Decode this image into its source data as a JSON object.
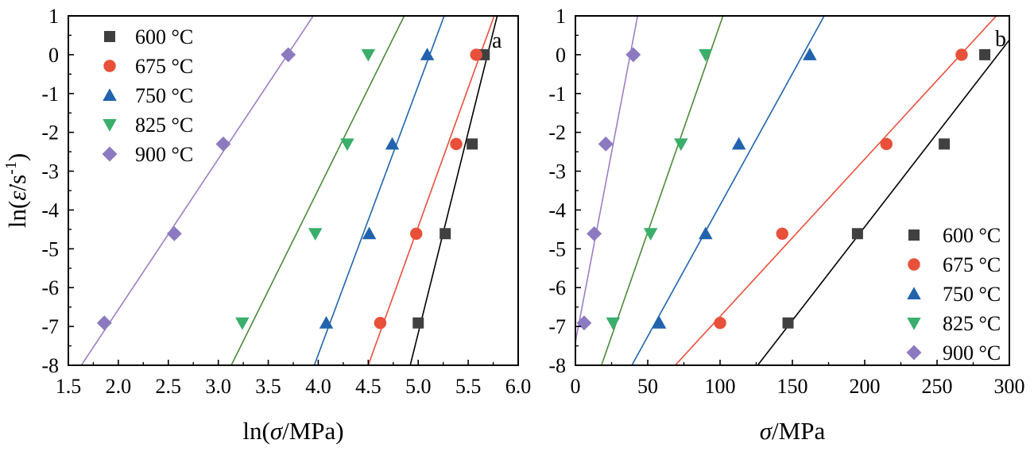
{
  "chart_data": [
    {
      "type": "scatter",
      "panel_label": "a",
      "xlabel_parts": [
        "ln(",
        "σ",
        "/MPa)"
      ],
      "ylabel_parts": [
        "ln(",
        "ε̇",
        "/s",
        "-1",
        ")"
      ],
      "xlim": [
        1.5,
        6.0
      ],
      "ylim": [
        -8,
        1
      ],
      "xticks": [
        "1.5",
        "2.0",
        "2.5",
        "3.0",
        "3.5",
        "4.0",
        "4.5",
        "5.0",
        "5.5",
        "6.0"
      ],
      "yticks": [
        "1",
        "0",
        "-1",
        "-2",
        "-3",
        "-4",
        "-5",
        "-6",
        "-7",
        "-8"
      ],
      "legend_position": "top-left",
      "series": [
        {
          "name": "600 °C",
          "marker": "square",
          "color": "#404040",
          "line_color": "#000000",
          "x": [
            5.0,
            5.27,
            5.54,
            5.66
          ],
          "y": [
            -6.91,
            -4.61,
            -2.3,
            0.0
          ],
          "fit_line": {
            "x": [
              4.92,
              5.79
            ],
            "y": [
              -8,
              1
            ]
          }
        },
        {
          "name": "675 °C",
          "marker": "circle",
          "color": "#e8503a",
          "line_color": "#e8503a",
          "x": [
            4.62,
            4.98,
            5.38,
            5.58
          ],
          "y": [
            -6.91,
            -4.61,
            -2.3,
            0.0
          ],
          "fit_line": {
            "x": [
              4.5,
              5.76
            ],
            "y": [
              -8,
              1
            ]
          }
        },
        {
          "name": "750 °C",
          "marker": "triangle-up",
          "color": "#2164ad",
          "line_color": "#2164ad",
          "x": [
            4.08,
            4.51,
            4.74,
            5.09
          ],
          "y": [
            -6.91,
            -4.61,
            -2.3,
            0.0
          ],
          "fit_line": {
            "x": [
              3.96,
              5.26
            ],
            "y": [
              -8,
              1
            ]
          }
        },
        {
          "name": "825 °C",
          "marker": "triangle-down",
          "color": "#3aae6b",
          "line_color": "#4c8a3a",
          "x": [
            3.24,
            3.97,
            4.29,
            4.5
          ],
          "y": [
            -6.91,
            -4.61,
            -2.3,
            0.0
          ],
          "fit_line": {
            "x": [
              3.13,
              4.86
            ],
            "y": [
              -8,
              1
            ]
          }
        },
        {
          "name": "900 °C",
          "marker": "diamond",
          "color": "#8c7ac0",
          "line_color": "#9b7fc4",
          "x": [
            1.86,
            2.56,
            3.05,
            3.7
          ],
          "y": [
            -6.91,
            -4.61,
            -2.3,
            0.0
          ],
          "fit_line": {
            "x": [
              1.63,
              3.95
            ],
            "y": [
              -8,
              1
            ]
          }
        }
      ]
    },
    {
      "type": "scatter",
      "panel_label": "b",
      "xlabel_parts": [
        "σ",
        "/MPa"
      ],
      "xlim": [
        0,
        300
      ],
      "ylim": [
        -8,
        1
      ],
      "xticks": [
        "0",
        "50",
        "100",
        "150",
        "200",
        "250",
        "300"
      ],
      "yticks": [
        "1",
        "0",
        "-1",
        "-2",
        "-3",
        "-4",
        "-5",
        "-6",
        "-7",
        "-8"
      ],
      "legend_position": "bottom-right",
      "series": [
        {
          "name": "600 °C",
          "marker": "square",
          "color": "#404040",
          "line_color": "#000000",
          "x": [
            147,
            195,
            255,
            283
          ],
          "y": [
            -6.91,
            -4.61,
            -2.3,
            0.0
          ],
          "fit_line": {
            "x": [
              126,
              300
            ],
            "y": [
              -8,
              0.38
            ]
          }
        },
        {
          "name": "675 °C",
          "marker": "circle",
          "color": "#e8503a",
          "line_color": "#e8503a",
          "x": [
            100,
            143,
            215,
            267
          ],
          "y": [
            -6.91,
            -4.61,
            -2.3,
            0.0
          ],
          "fit_line": {
            "x": [
              69,
              291
            ],
            "y": [
              -8,
              1
            ]
          }
        },
        {
          "name": "750 °C",
          "marker": "triangle-up",
          "color": "#2164ad",
          "line_color": "#2164ad",
          "x": [
            58,
            90,
            113,
            162
          ],
          "y": [
            -6.91,
            -4.61,
            -2.3,
            0.0
          ],
          "fit_line": {
            "x": [
              39,
              172
            ],
            "y": [
              -8,
              1
            ]
          }
        },
        {
          "name": "825 °C",
          "marker": "triangle-down",
          "color": "#3aae6b",
          "line_color": "#4c8a3a",
          "x": [
            26,
            52,
            73,
            90
          ],
          "y": [
            -6.91,
            -4.61,
            -2.3,
            0.0
          ],
          "fit_line": {
            "x": [
              18,
              102
            ],
            "y": [
              -8,
              1
            ]
          }
        },
        {
          "name": "900 °C",
          "marker": "diamond",
          "color": "#8c7ac0",
          "line_color": "#9b7fc4",
          "x": [
            6,
            13,
            21,
            40
          ],
          "y": [
            -6.91,
            -4.61,
            -2.3,
            0.0
          ],
          "fit_line": {
            "x": [
              0,
              43
            ],
            "y": [
              -7.4,
              1
            ]
          }
        }
      ]
    }
  ]
}
